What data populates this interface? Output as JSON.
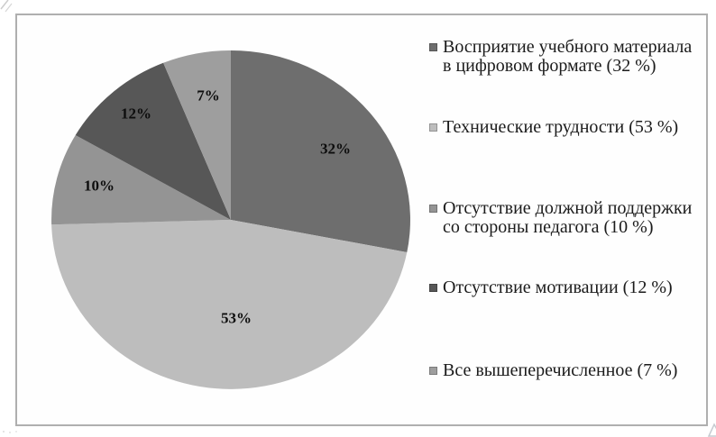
{
  "chart_data": {
    "type": "pie",
    "title": "",
    "legend_position": "right",
    "start_angle_deg": 0,
    "direction": "clockwise",
    "slices": [
      {
        "label": "Восприятие учебного материала в цифровом формате (32 %)",
        "value": 32,
        "display": "32%",
        "color": "#6e6e6e"
      },
      {
        "label": "Технические трудности (53 %)",
        "value": 53,
        "display": "53%",
        "color": "#bdbdbd"
      },
      {
        "label": "Отсутствие должной поддержки со стороны педагога (10 %)",
        "value": 10,
        "display": "10%",
        "color": "#949494"
      },
      {
        "label": "Отсутствие мотивации (12 %)",
        "value": 12,
        "display": "12%",
        "color": "#575757"
      },
      {
        "label": "Все вышеперечисленное (7 %)",
        "value": 7,
        "display": "7%",
        "color": "#9e9e9e"
      }
    ]
  },
  "colors": {
    "background": "#ffffff",
    "frame_border": "#afafaf",
    "slice_label_text": "#0d0d0d",
    "legend_text": "#1b1b1b",
    "watermark": "#c6cbd1"
  }
}
